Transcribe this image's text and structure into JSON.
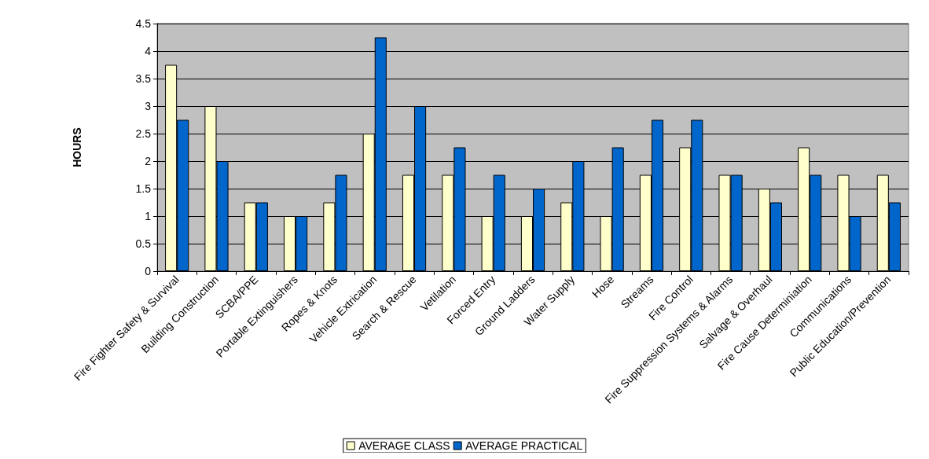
{
  "chart_data": {
    "type": "bar",
    "ylabel": "HOURS",
    "categories": [
      "Fire Fighter Safety & Survival",
      "Building Construction",
      "SCBA/PPE",
      "Portable Extinguishers",
      "Ropes & Knots",
      "Vehicle Extrication",
      "Search & Rescue",
      "Vetilation",
      "Forced Entry",
      "Ground Ladders",
      "Water Supply",
      "Hose",
      "Streams",
      "Fire Control",
      "Fire Suppression Systems & Alarms",
      "Salvage & Overhaul",
      "Fire Cause Determiniation",
      "Communications",
      "Public Education/Prevention"
    ],
    "series": [
      {
        "name": "AVERAGE CLASS",
        "color": "#ffffcc",
        "values": [
          3.75,
          3,
          1.25,
          1,
          1.25,
          2.5,
          1.75,
          1.75,
          1,
          1,
          1.25,
          1,
          1.75,
          2.25,
          1.75,
          1.5,
          2.25,
          1.75,
          1.75
        ]
      },
      {
        "name": "AVERAGE PRACTICAL",
        "color": "#0066cc",
        "values": [
          2.75,
          2,
          1.25,
          1,
          1.75,
          4.25,
          3,
          2.25,
          1.75,
          1.5,
          2,
          2.25,
          2.75,
          2.75,
          1.75,
          1.25,
          1.75,
          1,
          1.25
        ]
      }
    ],
    "ylim": [
      0,
      4.5
    ],
    "yticks": [
      0,
      0.5,
      1,
      1.5,
      2,
      2.5,
      3,
      3.5,
      4,
      4.5
    ],
    "grid": "y",
    "legend": "bottom"
  }
}
